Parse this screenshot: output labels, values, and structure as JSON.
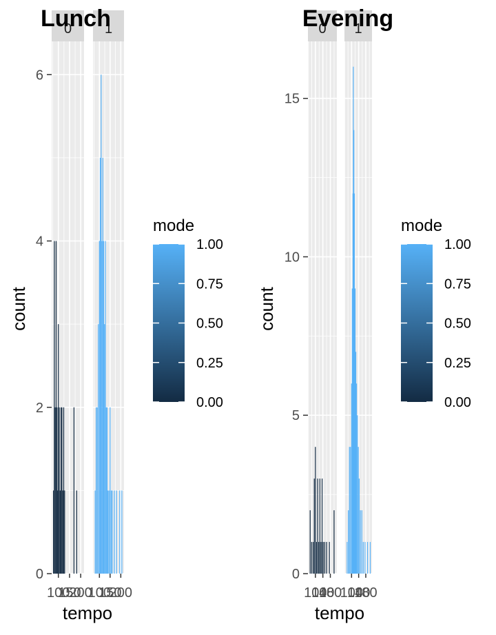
{
  "chart_data": [
    {
      "type": "bar",
      "title": "Lunch",
      "xlabel": "tempo",
      "ylabel": "count",
      "ylim": [
        0,
        6.4
      ],
      "y_ticks": [
        0,
        2,
        4,
        6
      ],
      "facets": [
        {
          "strip": "0",
          "mode": 0,
          "xlim": [
            70,
            215
          ],
          "x_tick_labels": [
            "100",
            "150",
            "200"
          ],
          "x_ticks": [
            100,
            150,
            200
          ],
          "values": [
            {
              "x": 78,
              "count": 1
            },
            {
              "x": 82,
              "count": 4
            },
            {
              "x": 86,
              "count": 2
            },
            {
              "x": 90,
              "count": 4
            },
            {
              "x": 94,
              "count": 2
            },
            {
              "x": 97,
              "count": 1
            },
            {
              "x": 100,
              "count": 3
            },
            {
              "x": 104,
              "count": 2
            },
            {
              "x": 108,
              "count": 1
            },
            {
              "x": 112,
              "count": 2
            },
            {
              "x": 116,
              "count": 2
            },
            {
              "x": 120,
              "count": 1
            },
            {
              "x": 124,
              "count": 2
            },
            {
              "x": 128,
              "count": 1
            },
            {
              "x": 170,
              "count": 2
            },
            {
              "x": 182,
              "count": 1
            }
          ]
        },
        {
          "strip": "1",
          "mode": 1,
          "xlim": [
            70,
            215
          ],
          "x_tick_labels": [
            "100",
            "150",
            "200"
          ],
          "x_ticks": [
            100,
            150,
            200
          ],
          "values": [
            {
              "x": 80,
              "count": 1
            },
            {
              "x": 85,
              "count": 2
            },
            {
              "x": 90,
              "count": 2
            },
            {
              "x": 95,
              "count": 3
            },
            {
              "x": 100,
              "count": 4
            },
            {
              "x": 104,
              "count": 5
            },
            {
              "x": 108,
              "count": 6
            },
            {
              "x": 112,
              "count": 4
            },
            {
              "x": 116,
              "count": 5
            },
            {
              "x": 120,
              "count": 4
            },
            {
              "x": 124,
              "count": 3
            },
            {
              "x": 128,
              "count": 4
            },
            {
              "x": 132,
              "count": 2
            },
            {
              "x": 136,
              "count": 2
            },
            {
              "x": 140,
              "count": 1
            },
            {
              "x": 145,
              "count": 1
            },
            {
              "x": 150,
              "count": 2
            },
            {
              "x": 155,
              "count": 1
            },
            {
              "x": 160,
              "count": 1
            },
            {
              "x": 170,
              "count": 1
            },
            {
              "x": 180,
              "count": 1
            },
            {
              "x": 195,
              "count": 1
            },
            {
              "x": 205,
              "count": 1
            }
          ]
        }
      ],
      "legend": {
        "title": "mode",
        "labels": [
          "1.00",
          "0.75",
          "0.50",
          "0.25",
          "0.00"
        ],
        "low_color": "#132B43",
        "high_color": "#56B1F7"
      }
    },
    {
      "type": "bar",
      "title": "Evening",
      "xlabel": "tempo",
      "ylabel": "count",
      "ylim": [
        0,
        16.8
      ],
      "y_ticks": [
        0,
        5,
        10,
        15
      ],
      "facets": [
        {
          "strip": "0",
          "mode": 0,
          "xlim": [
            60,
            215
          ],
          "x_tick_labels": [
            "100",
            "140",
            "180"
          ],
          "x_ticks": [
            100,
            140,
            180
          ],
          "values": [
            {
              "x": 72,
              "count": 2
            },
            {
              "x": 80,
              "count": 1
            },
            {
              "x": 88,
              "count": 1
            },
            {
              "x": 94,
              "count": 3
            },
            {
              "x": 100,
              "count": 4
            },
            {
              "x": 106,
              "count": 1
            },
            {
              "x": 112,
              "count": 3
            },
            {
              "x": 118,
              "count": 1
            },
            {
              "x": 124,
              "count": 3
            },
            {
              "x": 130,
              "count": 1
            },
            {
              "x": 136,
              "count": 3
            },
            {
              "x": 142,
              "count": 1
            },
            {
              "x": 150,
              "count": 1
            },
            {
              "x": 160,
              "count": 1
            },
            {
              "x": 175,
              "count": 1
            },
            {
              "x": 200,
              "count": 2
            }
          ]
        },
        {
          "strip": "1",
          "mode": 1,
          "xlim": [
            60,
            215
          ],
          "x_tick_labels": [
            "100",
            "140",
            "180"
          ],
          "x_ticks": [
            100,
            140,
            180
          ],
          "values": [
            {
              "x": 75,
              "count": 1
            },
            {
              "x": 82,
              "count": 2
            },
            {
              "x": 88,
              "count": 4
            },
            {
              "x": 94,
              "count": 4
            },
            {
              "x": 100,
              "count": 6
            },
            {
              "x": 104,
              "count": 9
            },
            {
              "x": 108,
              "count": 12
            },
            {
              "x": 110,
              "count": 16
            },
            {
              "x": 113,
              "count": 14
            },
            {
              "x": 116,
              "count": 12
            },
            {
              "x": 120,
              "count": 9
            },
            {
              "x": 124,
              "count": 7
            },
            {
              "x": 128,
              "count": 6
            },
            {
              "x": 133,
              "count": 5
            },
            {
              "x": 138,
              "count": 4
            },
            {
              "x": 143,
              "count": 3
            },
            {
              "x": 150,
              "count": 2
            },
            {
              "x": 158,
              "count": 2
            },
            {
              "x": 166,
              "count": 1
            },
            {
              "x": 176,
              "count": 1
            },
            {
              "x": 190,
              "count": 1
            },
            {
              "x": 205,
              "count": 1
            }
          ]
        }
      ],
      "legend": {
        "title": "mode",
        "labels": [
          "1.00",
          "0.75",
          "0.50",
          "0.25",
          "0.00"
        ],
        "low_color": "#132B43",
        "high_color": "#56B1F7"
      }
    }
  ]
}
